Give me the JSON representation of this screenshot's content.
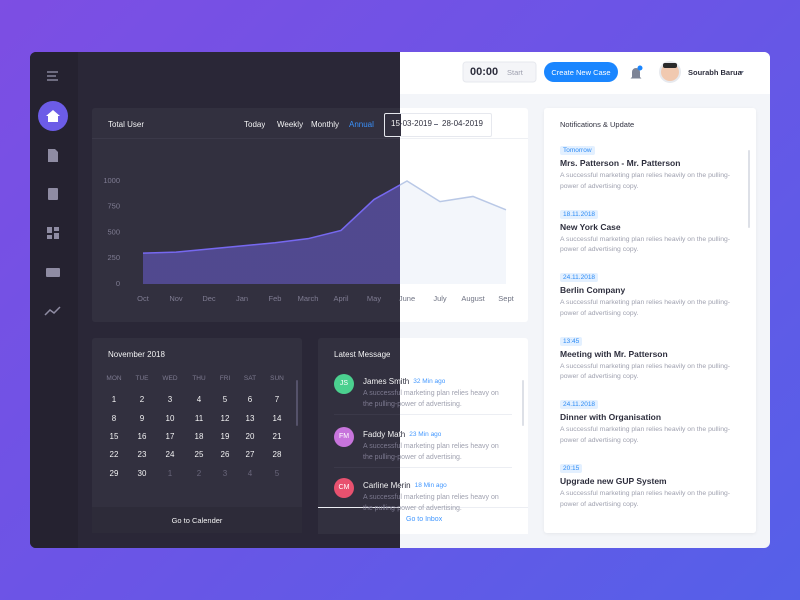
{
  "topbar": {
    "timer": "00:00",
    "start": "Start",
    "new_case": "Create New Case",
    "user": "Sourabh Barua"
  },
  "chart_data": {
    "type": "area",
    "title": "Total User",
    "filters": [
      "Today",
      "Weekly",
      "Monthly",
      "Annual"
    ],
    "date_from": "15-03-2019",
    "date_to": "28-04-2019",
    "categories": [
      "Oct",
      "Nov",
      "Dec",
      "Jan",
      "Feb",
      "March",
      "April",
      "May",
      "June",
      "July",
      "August",
      "Sept"
    ],
    "values": [
      300,
      310,
      340,
      370,
      400,
      440,
      520,
      820,
      1000,
      800,
      850,
      720
    ],
    "color": "#7668f0",
    "ylim": [
      0,
      1000
    ],
    "yticks": [
      0,
      250,
      500,
      750,
      1000
    ]
  },
  "calendar": {
    "title": "November 2018",
    "weekdays": [
      "MON",
      "TUE",
      "WED",
      "THU",
      "FRI",
      "SAT",
      "SUN"
    ],
    "weeks": [
      [
        1,
        2,
        3,
        4,
        5,
        6,
        7
      ],
      [
        8,
        9,
        10,
        11,
        12,
        13,
        14
      ],
      [
        15,
        16,
        17,
        18,
        19,
        20,
        21
      ],
      [
        22,
        23,
        24,
        25,
        26,
        27,
        28
      ],
      [
        29,
        30,
        1,
        2,
        3,
        4,
        5
      ]
    ],
    "footer": "Go to Calender"
  },
  "messages": {
    "title": "Latest Message",
    "footer": "Go to Inbox",
    "items": [
      {
        "initials": "JS",
        "color": "#4bd08f",
        "name": "James Smith",
        "time": "32 Min ago",
        "text": "A successful marketing plan relies heavy on the pulling-power of advertising."
      },
      {
        "initials": "FM",
        "color": "#c774dc",
        "name": "Faddy Math",
        "time": "23 Min ago",
        "text": "A successful marketing plan relies heavy on the pulling-power of advertising."
      },
      {
        "initials": "CM",
        "color": "#e8516f",
        "name": "Carline Merin",
        "time": "18 Min ago",
        "text": "A successful marketing plan relies heavy on the pulling-power of advertising."
      }
    ]
  },
  "notifications": {
    "title": "Notifications & Update",
    "items": [
      {
        "tag": "Tomorrow",
        "title": "Mrs. Patterson - Mr. Patterson",
        "text": "A successful marketing plan relies heavily on the pulling-power of advertising copy."
      },
      {
        "tag": "18.11.2018",
        "title": "New York Case",
        "text": "A successful marketing plan relies heavily on the pulling-power of advertising copy."
      },
      {
        "tag": "24.11.2018",
        "title": "Berlin Company",
        "text": "A successful marketing plan relies heavily on the pulling-power of advertising copy."
      },
      {
        "tag": "13:45",
        "title": "Meeting with Mr. Patterson",
        "text": "A successful marketing plan relies heavily on the pulling-power of advertising copy."
      },
      {
        "tag": "24.11.2018",
        "title": "Dinner with Organisation",
        "text": "A successful marketing plan relies heavily on the pulling-power of advertising copy."
      },
      {
        "tag": "20:15",
        "title": "Upgrade new GUP System",
        "text": "A successful marketing plan relies heavily on the pulling-power of advertising copy."
      }
    ]
  }
}
